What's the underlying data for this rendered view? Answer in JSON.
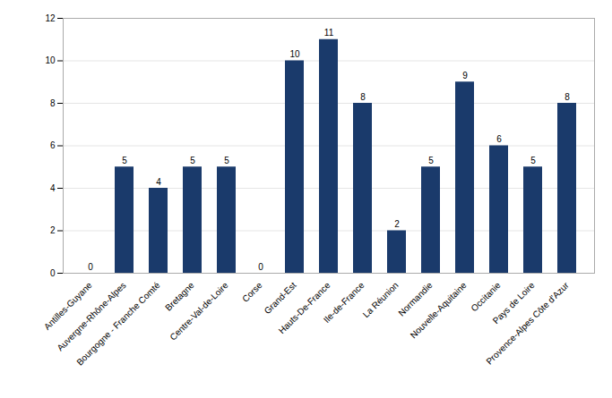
{
  "chart_data": {
    "type": "bar",
    "categories": [
      "Antilles-Guyane",
      "Auvergne-Rhône-Alpes",
      "Bourgogne - Franche Comté",
      "Bretagne",
      "Centre-Val-de-Loire",
      "Corse",
      "Grand-Est",
      "Hauts-De-France",
      "Ile-de-France",
      "La Réunion",
      "Normandie",
      "Nouvelle-Aquitaine",
      "Occitanie",
      "Pays de Loire",
      "Provence-Alpes Côte d'Azur"
    ],
    "values": [
      0,
      5,
      4,
      5,
      5,
      0,
      10,
      11,
      8,
      2,
      5,
      9,
      6,
      5,
      8
    ],
    "color": "#1a3a6b",
    "ylim": [
      0,
      12
    ],
    "yticks": [
      0,
      2,
      4,
      6,
      8,
      10,
      12
    ],
    "grid": true,
    "data_labels": true
  }
}
